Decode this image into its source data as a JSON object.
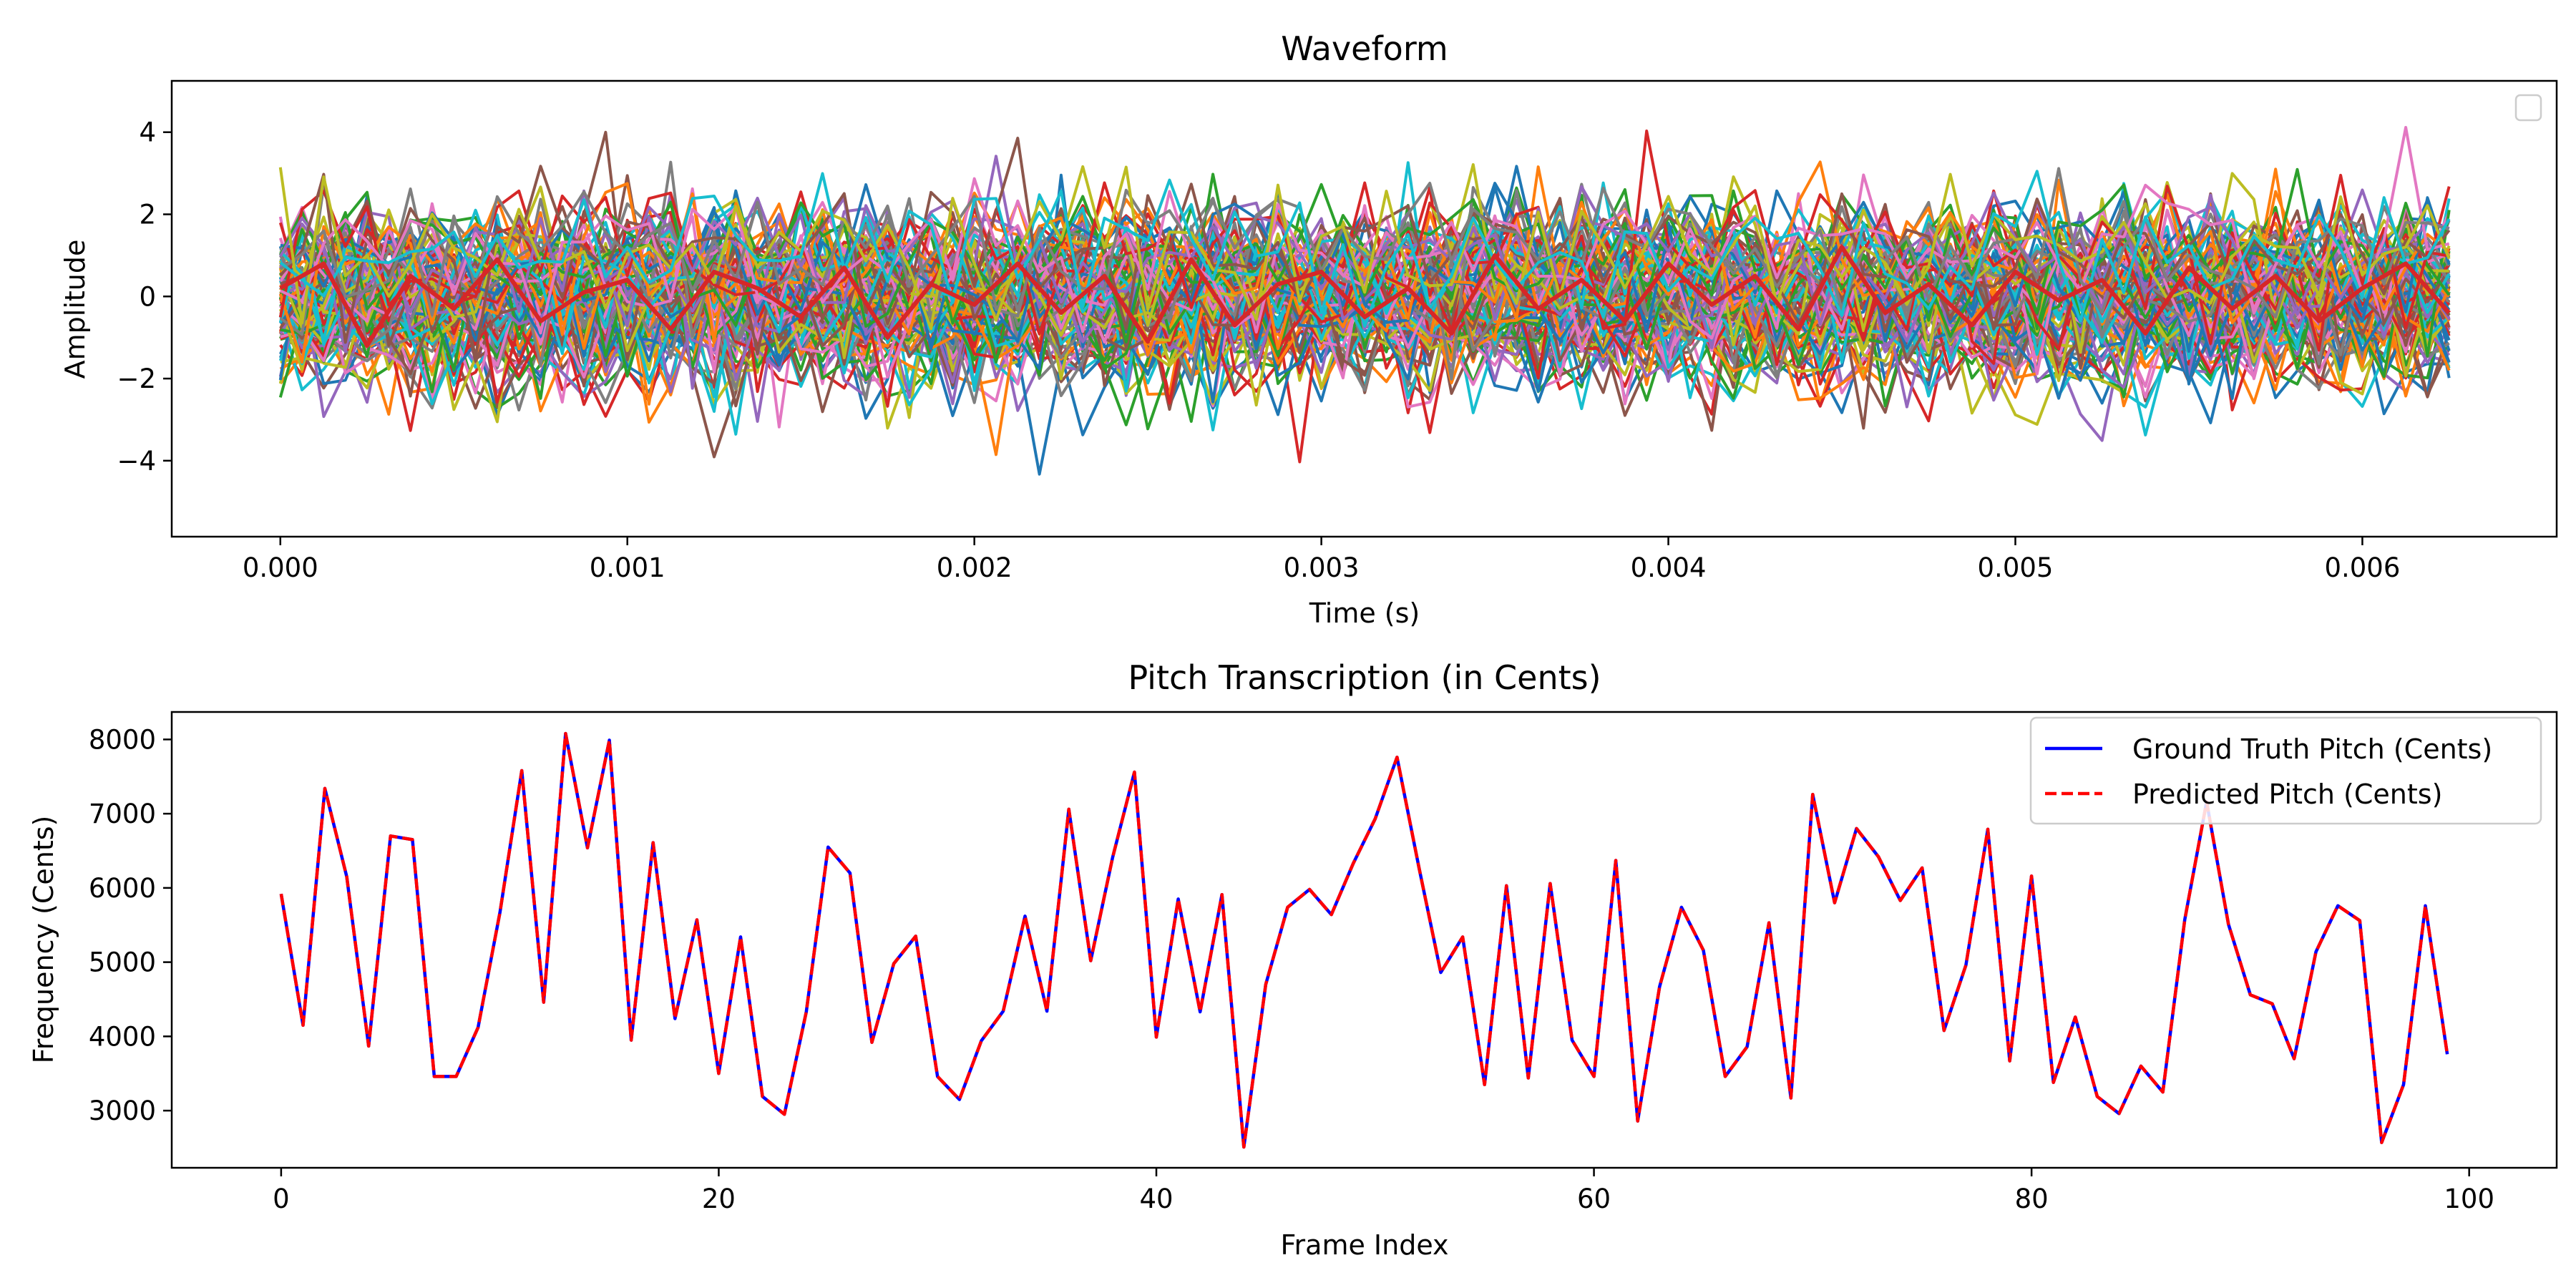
{
  "chart_data": [
    {
      "type": "line",
      "title": "Waveform",
      "xlabel": "Time (s)",
      "ylabel": "Amplitude",
      "xlim": [
        -0.000313,
        0.00656
      ],
      "ylim": [
        -5.85,
        5.25
      ],
      "xticks": [
        0.0,
        0.001,
        0.002,
        0.003,
        0.004,
        0.005,
        0.006
      ],
      "xtick_labels": [
        "0.000",
        "0.001",
        "0.002",
        "0.003",
        "0.004",
        "0.005",
        "0.006"
      ],
      "yticks": [
        -4,
        -2,
        0,
        2,
        4
      ],
      "ytick_labels": [
        "−4",
        "−2",
        "0",
        "2",
        "4"
      ],
      "grid": false,
      "legend": "top-right (empty)",
      "series_count": 100,
      "samples_per_series": 101,
      "x_end": 0.00625,
      "value_range": [
        -5.4,
        4.7
      ],
      "palette": [
        "#1f77b4",
        "#ff7f0e",
        "#2ca02c",
        "#d62728",
        "#9467bd",
        "#8c564b",
        "#e377c2",
        "#7f7f7f",
        "#bcbd22",
        "#17becf"
      ],
      "highlight_series": {
        "color": "#d62728",
        "x": [
          0.0,
          0.000125,
          0.00025,
          0.000375,
          0.0005,
          0.000625,
          0.00075,
          0.000875,
          0.001,
          0.001125,
          0.00125,
          0.001375,
          0.0015,
          0.001625,
          0.00175,
          0.001875,
          0.002,
          0.002125,
          0.00225,
          0.002375,
          0.0025,
          0.002625,
          0.00275,
          0.002875,
          0.003,
          0.003125,
          0.00325,
          0.003375,
          0.0035,
          0.003625,
          0.00375,
          0.003875,
          0.004,
          0.004125,
          0.00425,
          0.004375,
          0.0045,
          0.004625,
          0.00475,
          0.004875,
          0.005,
          0.005125,
          0.00525,
          0.005375,
          0.0055,
          0.005625,
          0.00575,
          0.005875,
          0.006,
          0.006125,
          0.00625
        ],
        "y": [
          0.2,
          0.8,
          -1.2,
          0.5,
          -0.3,
          0.9,
          -0.6,
          0.1,
          0.4,
          -0.8,
          0.6,
          0.2,
          -0.5,
          0.7,
          -1.0,
          0.3,
          -0.2,
          0.8,
          -0.4,
          0.5,
          -1.1,
          0.9,
          -0.7,
          0.3,
          0.6,
          -0.5,
          0.2,
          -0.9,
          1.0,
          -0.3,
          0.4,
          -0.6,
          0.8,
          -0.2,
          0.5,
          -0.8,
          1.2,
          -0.4,
          0.3,
          -0.7,
          0.6,
          -0.1,
          0.4,
          -0.9,
          0.7,
          -0.3,
          0.5,
          -0.6,
          0.2,
          0.8,
          -0.4
        ]
      }
    },
    {
      "type": "line",
      "title": "Pitch Transcription (in Cents)",
      "xlabel": "Frame Index",
      "ylabel": "Frequency (Cents)",
      "xlim": [
        -5,
        104
      ],
      "ylim": [
        2230,
        8370
      ],
      "xticks": [
        0,
        20,
        40,
        60,
        80,
        100
      ],
      "xtick_labels": [
        "0",
        "20",
        "40",
        "60",
        "80",
        "100"
      ],
      "yticks": [
        3000,
        4000,
        5000,
        6000,
        7000,
        8000
      ],
      "ytick_labels": [
        "3000",
        "4000",
        "5000",
        "6000",
        "7000",
        "8000"
      ],
      "grid": false,
      "legend": "top-right",
      "x": [
        0,
        1,
        2,
        3,
        4,
        5,
        6,
        7,
        8,
        9,
        10,
        11,
        12,
        13,
        14,
        15,
        16,
        17,
        18,
        19,
        20,
        21,
        22,
        23,
        24,
        25,
        26,
        27,
        28,
        29,
        30,
        31,
        32,
        33,
        34,
        35,
        36,
        37,
        38,
        39,
        40,
        41,
        42,
        43,
        44,
        45,
        46,
        47,
        48,
        49,
        50,
        51,
        52,
        53,
        54,
        55,
        56,
        57,
        58,
        59,
        60,
        61,
        62,
        63,
        64,
        65,
        66,
        67,
        68,
        69,
        70,
        71,
        72,
        73,
        74,
        75,
        76,
        77,
        78,
        79,
        80,
        81,
        82,
        83,
        84,
        85,
        86,
        87,
        88,
        89,
        90,
        91,
        92,
        93,
        94,
        95,
        96,
        97,
        98,
        99
      ],
      "series": [
        {
          "name": "Ground Truth Pitch (Cents)",
          "color": "#0000ff",
          "style": "solid",
          "values": [
            5920,
            4150,
            7340,
            6150,
            3870,
            6700,
            6650,
            3460,
            3460,
            4120,
            5670,
            7580,
            4460,
            8080,
            6540,
            7990,
            3950,
            6610,
            4240,
            5570,
            3500,
            5340,
            3190,
            2950,
            4330,
            6550,
            6200,
            3920,
            4980,
            5350,
            3460,
            3150,
            3940,
            4340,
            5620,
            4340,
            7060,
            5020,
            6410,
            7560,
            3990,
            5850,
            4330,
            5910,
            2510,
            4700,
            5740,
            5980,
            5640,
            6330,
            6930,
            7760,
            6280,
            4860,
            5340,
            3350,
            6030,
            3440,
            6060,
            3950,
            3460,
            6370,
            2860,
            4670,
            5740,
            5160,
            3460,
            3860,
            5530,
            3170,
            7260,
            5800,
            6800,
            6420,
            5830,
            6270,
            4080,
            4960,
            6790,
            3670,
            6160,
            3380,
            4260,
            3190,
            2960,
            3600,
            3250,
            5570,
            7160,
            5510,
            4560,
            4440,
            3700,
            5140,
            5760,
            5560,
            2570,
            3350,
            5760,
            3760
          ]
        },
        {
          "name": "Predicted Pitch (Cents)",
          "color": "#ff0000",
          "style": "dashed",
          "values": [
            5920,
            4150,
            7340,
            6150,
            3870,
            6700,
            6650,
            3460,
            3460,
            4120,
            5670,
            7580,
            4460,
            8080,
            6540,
            7990,
            3950,
            6610,
            4240,
            5570,
            3500,
            5340,
            3190,
            2950,
            4330,
            6550,
            6200,
            3920,
            4980,
            5350,
            3460,
            3150,
            3940,
            4340,
            5620,
            4340,
            7060,
            5020,
            6410,
            7560,
            3990,
            5850,
            4330,
            5910,
            2510,
            4700,
            5740,
            5980,
            5640,
            6330,
            6930,
            7760,
            6280,
            4860,
            5340,
            3350,
            6030,
            3440,
            6060,
            3950,
            3460,
            6370,
            2860,
            4670,
            5740,
            5160,
            3460,
            3860,
            5530,
            3170,
            7260,
            5800,
            6800,
            6420,
            5830,
            6270,
            4080,
            4960,
            6790,
            3670,
            6160,
            3380,
            4260,
            3190,
            2960,
            3600,
            3250,
            5570,
            7160,
            5510,
            4560,
            4440,
            3700,
            5140,
            5760,
            5560,
            2570,
            3350,
            5760,
            3760
          ]
        }
      ]
    }
  ]
}
